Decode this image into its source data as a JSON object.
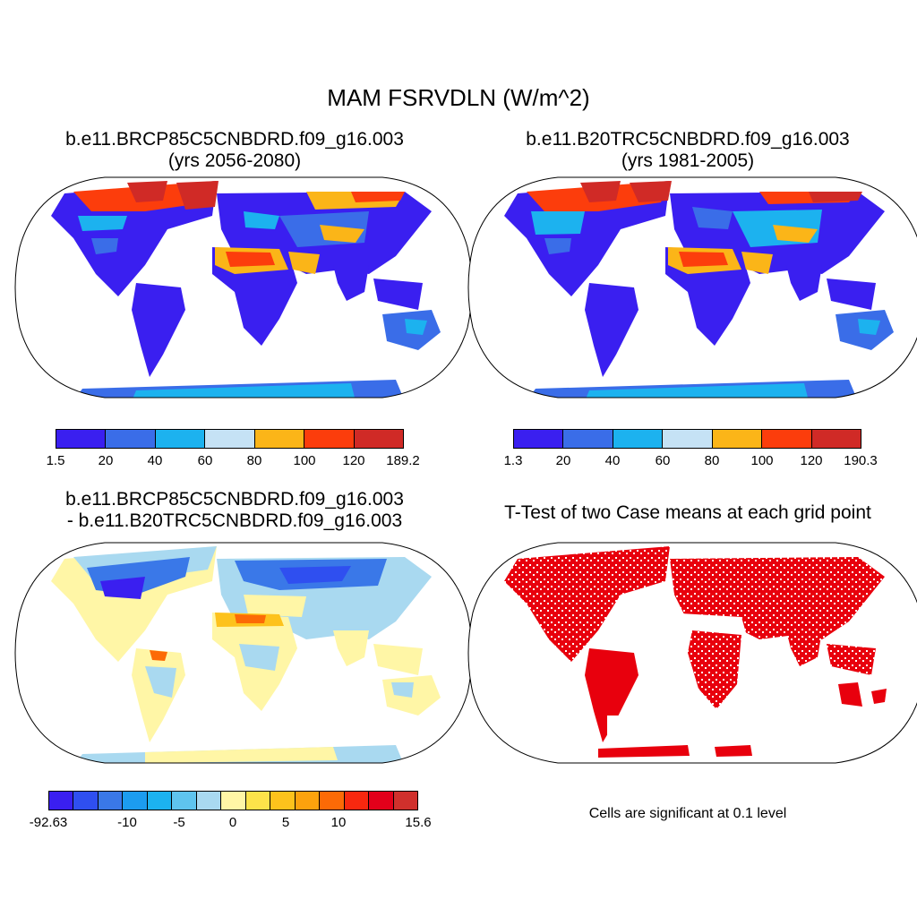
{
  "title": "MAM FSRVDLN (W/m^2)",
  "panels": {
    "top_left": {
      "title_line1": "b.e11.BRCP85C5CNBDRD.f09_g16.003",
      "title_line2": "(yrs 2056-2080)",
      "colorbar_labels": [
        "1.5",
        "20",
        "40",
        "60",
        "80",
        "100",
        "120",
        "189.2"
      ],
      "colors": [
        "#3a1ff0",
        "#3a6de8",
        "#1cb2ef",
        "#c5e2f5",
        "#fbb518",
        "#fc3d0c",
        "#d02a26"
      ]
    },
    "top_right": {
      "title_line1": "b.e11.B20TRC5CNBDRD.f09_g16.003",
      "title_line2": "(yrs 1981-2005)",
      "colorbar_labels": [
        "1.3",
        "20",
        "40",
        "60",
        "80",
        "100",
        "120",
        "190.3"
      ],
      "colors": [
        "#3a1ff0",
        "#3a6de8",
        "#1cb2ef",
        "#c5e2f5",
        "#fbb518",
        "#fc3d0c",
        "#d02a26"
      ]
    },
    "bottom_left": {
      "title_line1": "b.e11.BRCP85C5CNBDRD.f09_g16.003",
      "title_line2": "- b.e11.B20TRC5CNBDRD.f09_g16.003",
      "colorbar_labels": [
        "-92.63",
        "-10",
        "-5",
        "0",
        "5",
        "10",
        "15.6"
      ],
      "colors": [
        "#3a1ff0",
        "#2f4ff0",
        "#3a78e8",
        "#1c9cef",
        "#1cb2ef",
        "#5fc4ee",
        "#a9d9f0",
        "#fff6a6",
        "#fde34a",
        "#fdc21c",
        "#fca20d",
        "#fc6a06",
        "#f8280f",
        "#e2001a",
        "#d0302c"
      ]
    },
    "bottom_right": {
      "title": "T-Test of two Case means at each grid point",
      "note": "Cells are significant at 0.1 level",
      "significant_color": "#e8000d"
    }
  }
}
